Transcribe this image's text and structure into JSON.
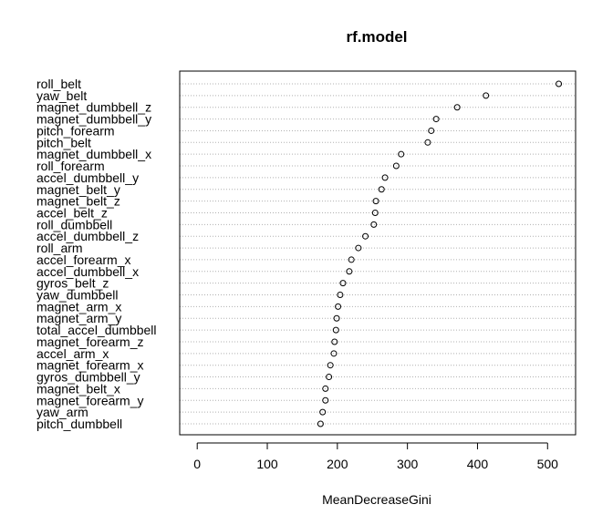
{
  "chart_data": {
    "type": "scatter",
    "title": "rf.model",
    "xlabel": "MeanDecreaseGini",
    "ylabel": "",
    "xlim": [
      -25,
      540
    ],
    "xticks": [
      "0",
      "100",
      "200",
      "300",
      "400",
      "500"
    ],
    "xtick_values": [
      0,
      100,
      200,
      300,
      400,
      500
    ],
    "grid": "dotted horizontal lines per variable",
    "categories": [
      "roll_belt",
      "yaw_belt",
      "magnet_dumbbell_z",
      "magnet_dumbbell_y",
      "pitch_forearm",
      "pitch_belt",
      "magnet_dumbbell_x",
      "roll_forearm",
      "accel_dumbbell_y",
      "magnet_belt_y",
      "magnet_belt_z",
      "accel_belt_z",
      "roll_dumbbell",
      "accel_dumbbell_z",
      "roll_arm",
      "accel_forearm_x",
      "accel_dumbbell_x",
      "gyros_belt_z",
      "yaw_dumbbell",
      "magnet_arm_x",
      "magnet_arm_y",
      "total_accel_dumbbell",
      "magnet_forearm_z",
      "accel_arm_x",
      "magnet_forearm_x",
      "gyros_dumbbell_y",
      "magnet_belt_x",
      "magnet_forearm_y",
      "yaw_arm",
      "pitch_dumbbell"
    ],
    "values": [
      516,
      412,
      371,
      341,
      334,
      329,
      291,
      284,
      268,
      263,
      255,
      254,
      252,
      240,
      230,
      220,
      217,
      208,
      204,
      201,
      199,
      198,
      196,
      195,
      190,
      188,
      183,
      183,
      179,
      176
    ]
  }
}
